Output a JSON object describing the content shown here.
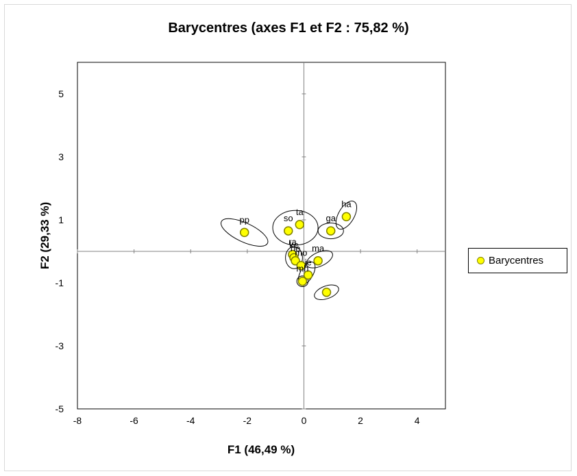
{
  "chart_data": {
    "type": "scatter",
    "title": "Barycentres (axes F1 et F2 : 75,82 %)",
    "xlabel": "F1 (46,49 %)",
    "ylabel": "F2 (29,33 %)",
    "xlim": [
      -8,
      5
    ],
    "ylim": [
      -5,
      6
    ],
    "xticks": [
      -8,
      -6,
      -4,
      -2,
      0,
      2,
      4
    ],
    "yticks": [
      -5,
      -3,
      -1,
      1,
      3,
      5
    ],
    "x_tick_labels": [
      "-8",
      "-6",
      "-4",
      "-2",
      "0",
      "2",
      "4"
    ],
    "y_tick_labels": [
      "-5",
      "-3",
      "-1",
      "1",
      "3",
      "5"
    ],
    "grid": false,
    "legend_position": "right",
    "series": [
      {
        "name": "Barycentres",
        "marker_color": "#ffff00",
        "marker_edge": "#808000",
        "points": [
          {
            "label": "pp",
            "x": -2.1,
            "y": 0.6
          },
          {
            "label": "so",
            "x": -0.55,
            "y": 0.65
          },
          {
            "label": "ta",
            "x": -0.15,
            "y": 0.85
          },
          {
            "label": "ga",
            "x": 0.95,
            "y": 0.65
          },
          {
            "label": "ha",
            "x": 1.5,
            "y": 1.1
          },
          {
            "label": "ra",
            "x": -0.4,
            "y": -0.1
          },
          {
            "label": "ke",
            "x": -0.35,
            "y": -0.2
          },
          {
            "label": "he",
            "x": -0.3,
            "y": -0.3
          },
          {
            "label": "ma",
            "x": 0.5,
            "y": -0.3
          },
          {
            "label": "mo",
            "x": -0.1,
            "y": -0.45
          },
          {
            "label": "je",
            "x": 0.15,
            "y": -0.75
          },
          {
            "label": "mh",
            "x": -0.05,
            "y": -0.95
          },
          {
            "label": "",
            "x": 0.8,
            "y": -1.3
          }
        ]
      }
    ],
    "ellipses": [
      {
        "cx": -2.1,
        "cy": 0.6,
        "rx": 0.9,
        "ry": 0.3,
        "rotation_deg": 25
      },
      {
        "cx": -0.3,
        "cy": 0.75,
        "rx": 0.8,
        "ry": 0.55,
        "rotation_deg": 0
      },
      {
        "cx": 0.95,
        "cy": 0.65,
        "rx": 0.45,
        "ry": 0.25,
        "rotation_deg": 0
      },
      {
        "cx": 1.5,
        "cy": 1.15,
        "rx": 0.55,
        "ry": 0.25,
        "rotation_deg": -60
      },
      {
        "cx": -0.35,
        "cy": -0.2,
        "rx": 0.3,
        "ry": 0.35,
        "rotation_deg": 0
      },
      {
        "cx": 0.55,
        "cy": -0.25,
        "rx": 0.5,
        "ry": 0.22,
        "rotation_deg": -25
      },
      {
        "cx": 0.1,
        "cy": -0.7,
        "rx": 0.45,
        "ry": 0.2,
        "rotation_deg": -60
      },
      {
        "cx": -0.05,
        "cy": -0.95,
        "rx": 0.2,
        "ry": 0.17,
        "rotation_deg": 0
      },
      {
        "cx": 0.8,
        "cy": -1.3,
        "rx": 0.45,
        "ry": 0.2,
        "rotation_deg": -20
      }
    ]
  }
}
